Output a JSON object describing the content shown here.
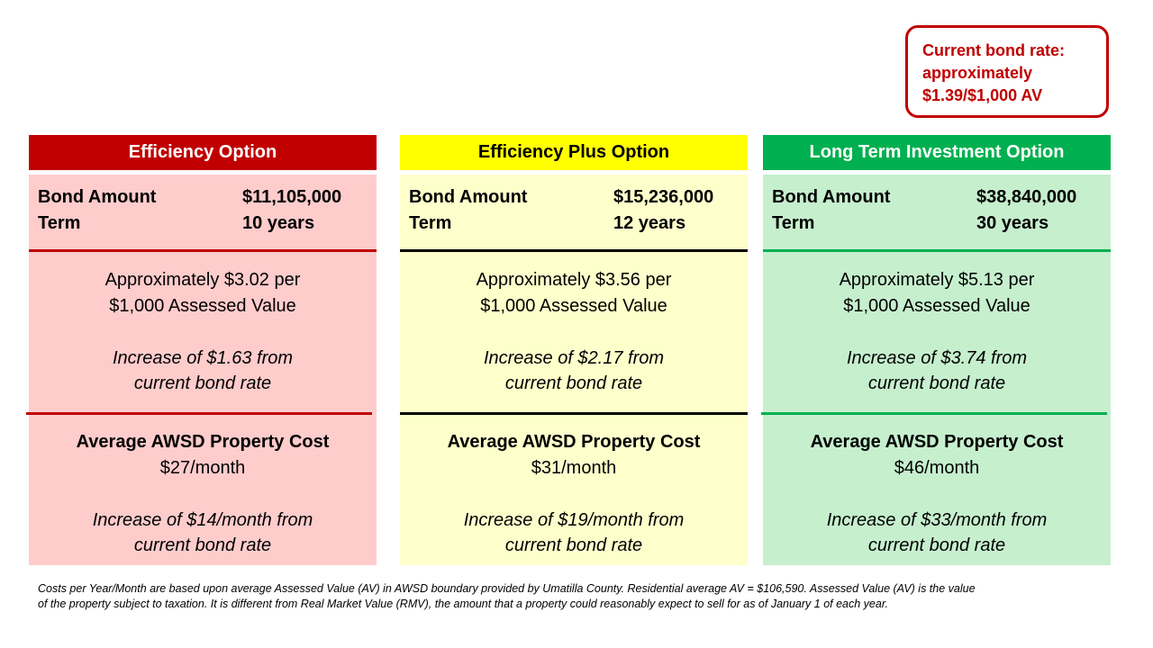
{
  "rate_box": {
    "line1": "Current bond rate:",
    "line2": "approximately",
    "line3": "$1.39/$1,000 AV"
  },
  "options": [
    {
      "title": "Efficiency Option",
      "bond_label": "Bond Amount",
      "bond_value": "$11,105,000",
      "term_label": "Term",
      "term_value": "10 years",
      "rate_line1": "Approximately $3.02 per",
      "rate_line2": "$1,000 Assessed Value",
      "rate_increase_line1": "Increase of $1.63 from",
      "rate_increase_line2": "current bond rate",
      "cost_title": "Average AWSD Property Cost",
      "cost_value": "$27/month",
      "cost_increase_line1": "Increase of $14/month from",
      "cost_increase_line2": "current bond rate",
      "header_color": "#c00000",
      "body_color": "#ffcccc"
    },
    {
      "title": "Efficiency Plus Option",
      "bond_label": "Bond Amount",
      "bond_value": "$15,236,000",
      "term_label": "Term",
      "term_value": "12 years",
      "rate_line1": "Approximately $3.56 per",
      "rate_line2": "$1,000 Assessed Value",
      "rate_increase_line1": "Increase of $2.17 from",
      "rate_increase_line2": "current bond rate",
      "cost_title": "Average AWSD Property Cost",
      "cost_value": "$31/month",
      "cost_increase_line1": "Increase of $19/month from",
      "cost_increase_line2": "current bond rate",
      "header_color": "#ffff00",
      "body_color": "#ffffcc"
    },
    {
      "title": "Long Term Investment Option",
      "bond_label": "Bond Amount",
      "bond_value": "$38,840,000",
      "term_label": "Term",
      "term_value": "30 years",
      "rate_line1": "Approximately $5.13 per",
      "rate_line2": "$1,000 Assessed Value",
      "rate_increase_line1": "Increase of $3.74 from",
      "rate_increase_line2": "current bond rate",
      "cost_title": "Average AWSD Property Cost",
      "cost_value": "$46/month",
      "cost_increase_line1": "Increase of $33/month from",
      "cost_increase_line2": "current bond rate",
      "header_color": "#00b050",
      "body_color": "#c6efce"
    }
  ],
  "footnote": {
    "line1": "Costs per Year/Month are based upon average Assessed Value (AV) in AWSD boundary provided by Umatilla County. Residential average AV = $106,590. Assessed Value (AV) is the value",
    "line2": "of the property subject to taxation. It is different from Real Market Value (RMV), the amount that a property could reasonably expect to sell for as of January 1 of each year."
  }
}
